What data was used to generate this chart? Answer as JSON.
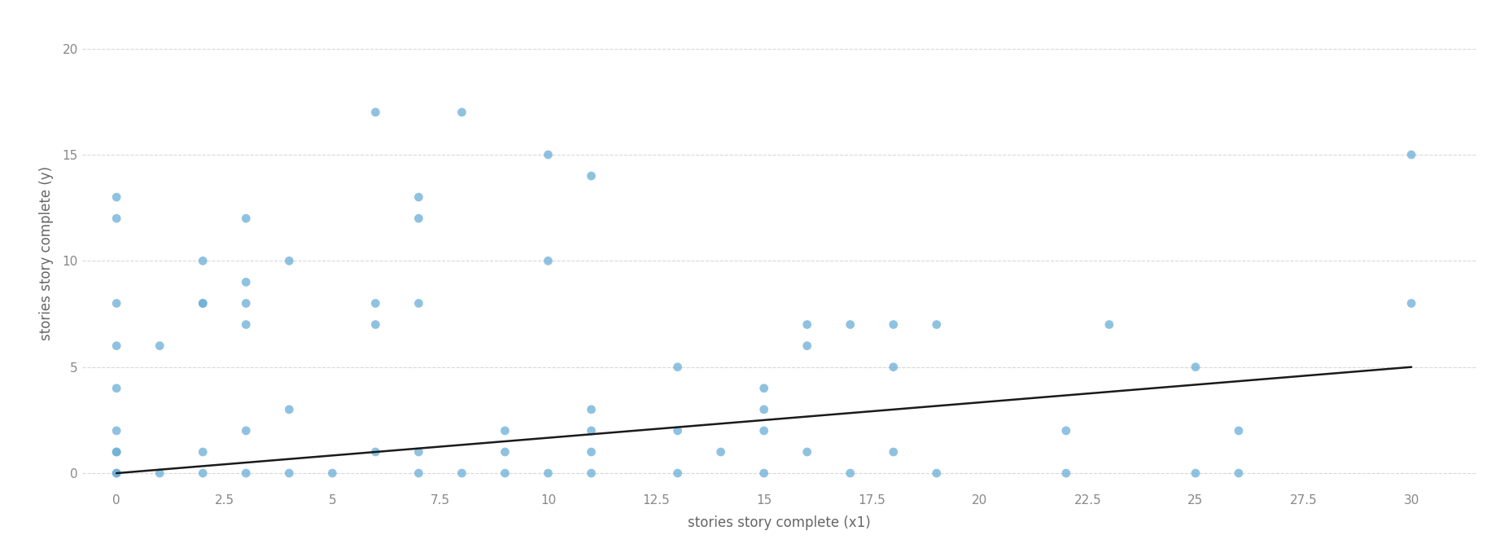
{
  "x": [
    0,
    0,
    0,
    0,
    0,
    0,
    0,
    0,
    0,
    0,
    1,
    1,
    2,
    2,
    2,
    2,
    2,
    3,
    3,
    3,
    3,
    3,
    3,
    4,
    4,
    4,
    5,
    6,
    6,
    6,
    6,
    7,
    7,
    7,
    7,
    7,
    8,
    8,
    9,
    9,
    9,
    10,
    10,
    10,
    11,
    11,
    11,
    11,
    11,
    13,
    13,
    13,
    14,
    15,
    15,
    15,
    15,
    16,
    16,
    16,
    17,
    17,
    18,
    18,
    18,
    19,
    19,
    22,
    22,
    23,
    25,
    25,
    26,
    26,
    30,
    30
  ],
  "y": [
    13,
    12,
    8,
    6,
    4,
    2,
    1,
    1,
    0,
    0,
    6,
    0,
    10,
    8,
    8,
    1,
    0,
    12,
    9,
    8,
    7,
    2,
    0,
    10,
    3,
    0,
    0,
    17,
    8,
    7,
    1,
    13,
    12,
    8,
    1,
    0,
    17,
    0,
    2,
    1,
    0,
    15,
    10,
    0,
    14,
    3,
    2,
    1,
    0,
    5,
    2,
    0,
    1,
    4,
    3,
    2,
    0,
    7,
    6,
    1,
    7,
    0,
    7,
    5,
    1,
    7,
    0,
    2,
    0,
    7,
    5,
    0,
    2,
    0,
    15,
    8
  ],
  "scatter_color": "#6aaed6",
  "scatter_size": 60,
  "scatter_alpha": 0.75,
  "line_color": "#1a1a1a",
  "line_width": 1.8,
  "line_x0": 0,
  "line_x1": 30,
  "line_y0": 0.0,
  "line_y1": 5.0,
  "xlabel": "stories story complete (x1)",
  "ylabel": "stories story complete (y)",
  "xlim": [
    -0.8,
    31.5
  ],
  "ylim": [
    -0.8,
    21.5
  ],
  "xticks": [
    0,
    2.5,
    5,
    7.5,
    10,
    12.5,
    15,
    17.5,
    20,
    22.5,
    25,
    27.5,
    30
  ],
  "yticks": [
    0,
    5,
    10,
    15,
    20
  ],
  "grid_color": "#c8c8c8",
  "grid_style": "--",
  "grid_alpha": 0.7,
  "background_color": "#ffffff",
  "xlabel_fontsize": 12,
  "ylabel_fontsize": 12,
  "tick_fontsize": 11,
  "tick_color": "#888888",
  "label_color": "#666666"
}
